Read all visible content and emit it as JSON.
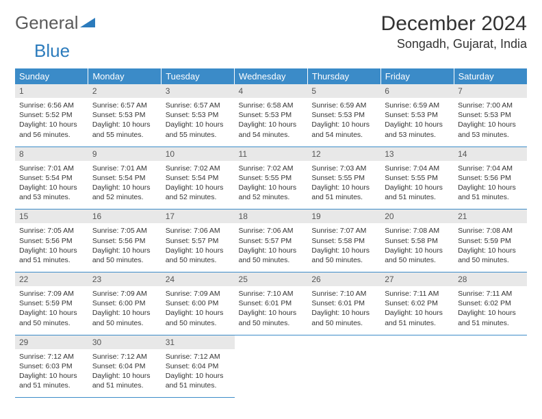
{
  "logo": {
    "word1": "General",
    "word2": "Blue"
  },
  "title": "December 2024",
  "location": "Songadh, Gujarat, India",
  "colors": {
    "header_bg": "#3b8bc8",
    "header_text": "#ffffff",
    "daynum_bg": "#e8e8e8",
    "border": "#3b8bc8",
    "logo_blue": "#2b7bbc",
    "logo_gray": "#5a5a5a"
  },
  "weekdays": [
    "Sunday",
    "Monday",
    "Tuesday",
    "Wednesday",
    "Thursday",
    "Friday",
    "Saturday"
  ],
  "weeks": [
    [
      {
        "n": "1",
        "sr": "6:56 AM",
        "ss": "5:52 PM",
        "dl": "10 hours and 56 minutes."
      },
      {
        "n": "2",
        "sr": "6:57 AM",
        "ss": "5:53 PM",
        "dl": "10 hours and 55 minutes."
      },
      {
        "n": "3",
        "sr": "6:57 AM",
        "ss": "5:53 PM",
        "dl": "10 hours and 55 minutes."
      },
      {
        "n": "4",
        "sr": "6:58 AM",
        "ss": "5:53 PM",
        "dl": "10 hours and 54 minutes."
      },
      {
        "n": "5",
        "sr": "6:59 AM",
        "ss": "5:53 PM",
        "dl": "10 hours and 54 minutes."
      },
      {
        "n": "6",
        "sr": "6:59 AM",
        "ss": "5:53 PM",
        "dl": "10 hours and 53 minutes."
      },
      {
        "n": "7",
        "sr": "7:00 AM",
        "ss": "5:53 PM",
        "dl": "10 hours and 53 minutes."
      }
    ],
    [
      {
        "n": "8",
        "sr": "7:01 AM",
        "ss": "5:54 PM",
        "dl": "10 hours and 53 minutes."
      },
      {
        "n": "9",
        "sr": "7:01 AM",
        "ss": "5:54 PM",
        "dl": "10 hours and 52 minutes."
      },
      {
        "n": "10",
        "sr": "7:02 AM",
        "ss": "5:54 PM",
        "dl": "10 hours and 52 minutes."
      },
      {
        "n": "11",
        "sr": "7:02 AM",
        "ss": "5:55 PM",
        "dl": "10 hours and 52 minutes."
      },
      {
        "n": "12",
        "sr": "7:03 AM",
        "ss": "5:55 PM",
        "dl": "10 hours and 51 minutes."
      },
      {
        "n": "13",
        "sr": "7:04 AM",
        "ss": "5:55 PM",
        "dl": "10 hours and 51 minutes."
      },
      {
        "n": "14",
        "sr": "7:04 AM",
        "ss": "5:56 PM",
        "dl": "10 hours and 51 minutes."
      }
    ],
    [
      {
        "n": "15",
        "sr": "7:05 AM",
        "ss": "5:56 PM",
        "dl": "10 hours and 51 minutes."
      },
      {
        "n": "16",
        "sr": "7:05 AM",
        "ss": "5:56 PM",
        "dl": "10 hours and 50 minutes."
      },
      {
        "n": "17",
        "sr": "7:06 AM",
        "ss": "5:57 PM",
        "dl": "10 hours and 50 minutes."
      },
      {
        "n": "18",
        "sr": "7:06 AM",
        "ss": "5:57 PM",
        "dl": "10 hours and 50 minutes."
      },
      {
        "n": "19",
        "sr": "7:07 AM",
        "ss": "5:58 PM",
        "dl": "10 hours and 50 minutes."
      },
      {
        "n": "20",
        "sr": "7:08 AM",
        "ss": "5:58 PM",
        "dl": "10 hours and 50 minutes."
      },
      {
        "n": "21",
        "sr": "7:08 AM",
        "ss": "5:59 PM",
        "dl": "10 hours and 50 minutes."
      }
    ],
    [
      {
        "n": "22",
        "sr": "7:09 AM",
        "ss": "5:59 PM",
        "dl": "10 hours and 50 minutes."
      },
      {
        "n": "23",
        "sr": "7:09 AM",
        "ss": "6:00 PM",
        "dl": "10 hours and 50 minutes."
      },
      {
        "n": "24",
        "sr": "7:09 AM",
        "ss": "6:00 PM",
        "dl": "10 hours and 50 minutes."
      },
      {
        "n": "25",
        "sr": "7:10 AM",
        "ss": "6:01 PM",
        "dl": "10 hours and 50 minutes."
      },
      {
        "n": "26",
        "sr": "7:10 AM",
        "ss": "6:01 PM",
        "dl": "10 hours and 50 minutes."
      },
      {
        "n": "27",
        "sr": "7:11 AM",
        "ss": "6:02 PM",
        "dl": "10 hours and 51 minutes."
      },
      {
        "n": "28",
        "sr": "7:11 AM",
        "ss": "6:02 PM",
        "dl": "10 hours and 51 minutes."
      }
    ],
    [
      {
        "n": "29",
        "sr": "7:12 AM",
        "ss": "6:03 PM",
        "dl": "10 hours and 51 minutes."
      },
      {
        "n": "30",
        "sr": "7:12 AM",
        "ss": "6:04 PM",
        "dl": "10 hours and 51 minutes."
      },
      {
        "n": "31",
        "sr": "7:12 AM",
        "ss": "6:04 PM",
        "dl": "10 hours and 51 minutes."
      },
      null,
      null,
      null,
      null
    ]
  ],
  "labels": {
    "sunrise": "Sunrise: ",
    "sunset": "Sunset: ",
    "daylight": "Daylight: "
  }
}
